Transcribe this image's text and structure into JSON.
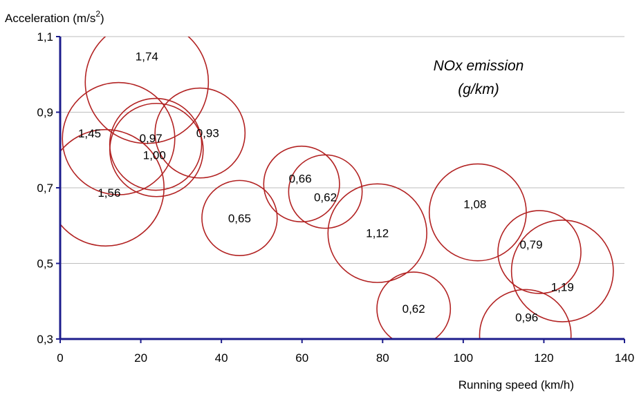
{
  "chart_data": {
    "type": "scatter",
    "variant": "bubble",
    "title_lines": [
      "NOx emission",
      "(g/km)"
    ],
    "xlabel": "Running speed (km/h)",
    "ylabel_prefix": "Acceleration (m/s",
    "ylabel_sup": "2",
    "ylabel_suffix": ")",
    "xlim": [
      0,
      140
    ],
    "ylim": [
      0.3,
      1.1
    ],
    "x_ticks": [
      0,
      20,
      40,
      60,
      80,
      100,
      120,
      140
    ],
    "x_tick_labels": [
      "0",
      "20",
      "40",
      "60",
      "80",
      "100",
      "120",
      "140"
    ],
    "y_ticks": [
      0.3,
      0.5,
      0.7,
      0.9,
      1.1
    ],
    "y_tick_labels": [
      "0,3",
      "0,5",
      "0,7",
      "0,9",
      "1,1"
    ],
    "horizontal_grid": true,
    "legend": "none",
    "colors": {
      "bubble_stroke": "#b22222",
      "axis": "#1c1c8c",
      "grid": "#bdbdbd"
    },
    "points": [
      {
        "x": 21.5,
        "y": 0.98,
        "size": 1.74,
        "label": "1,74"
      },
      {
        "x": 14.5,
        "y": 0.83,
        "size": 1.45,
        "label": "1,45"
      },
      {
        "x": 11.3,
        "y": 0.7,
        "size": 1.56,
        "label": "1,56"
      },
      {
        "x": 23.7,
        "y": 0.815,
        "size": 0.97,
        "label": "0,97"
      },
      {
        "x": 23.9,
        "y": 0.8,
        "size": 1.0,
        "label": "1,00"
      },
      {
        "x": 34.7,
        "y": 0.845,
        "size": 0.93,
        "label": "0,93"
      },
      {
        "x": 44.5,
        "y": 0.62,
        "size": 0.65,
        "label": "0,65"
      },
      {
        "x": 59.9,
        "y": 0.71,
        "size": 0.66,
        "label": "0,66"
      },
      {
        "x": 65.8,
        "y": 0.69,
        "size": 0.62,
        "label": "0,62"
      },
      {
        "x": 78.7,
        "y": 0.58,
        "size": 1.12,
        "label": "1,12"
      },
      {
        "x": 87.7,
        "y": 0.38,
        "size": 0.62,
        "label": "0,62"
      },
      {
        "x": 103.6,
        "y": 0.635,
        "size": 1.08,
        "label": "1,08"
      },
      {
        "x": 118.9,
        "y": 0.53,
        "size": 0.79,
        "label": "0,79"
      },
      {
        "x": 124.6,
        "y": 0.48,
        "size": 1.19,
        "label": "1,19"
      },
      {
        "x": 115.4,
        "y": 0.31,
        "size": 0.96,
        "label": "0,96"
      }
    ]
  }
}
